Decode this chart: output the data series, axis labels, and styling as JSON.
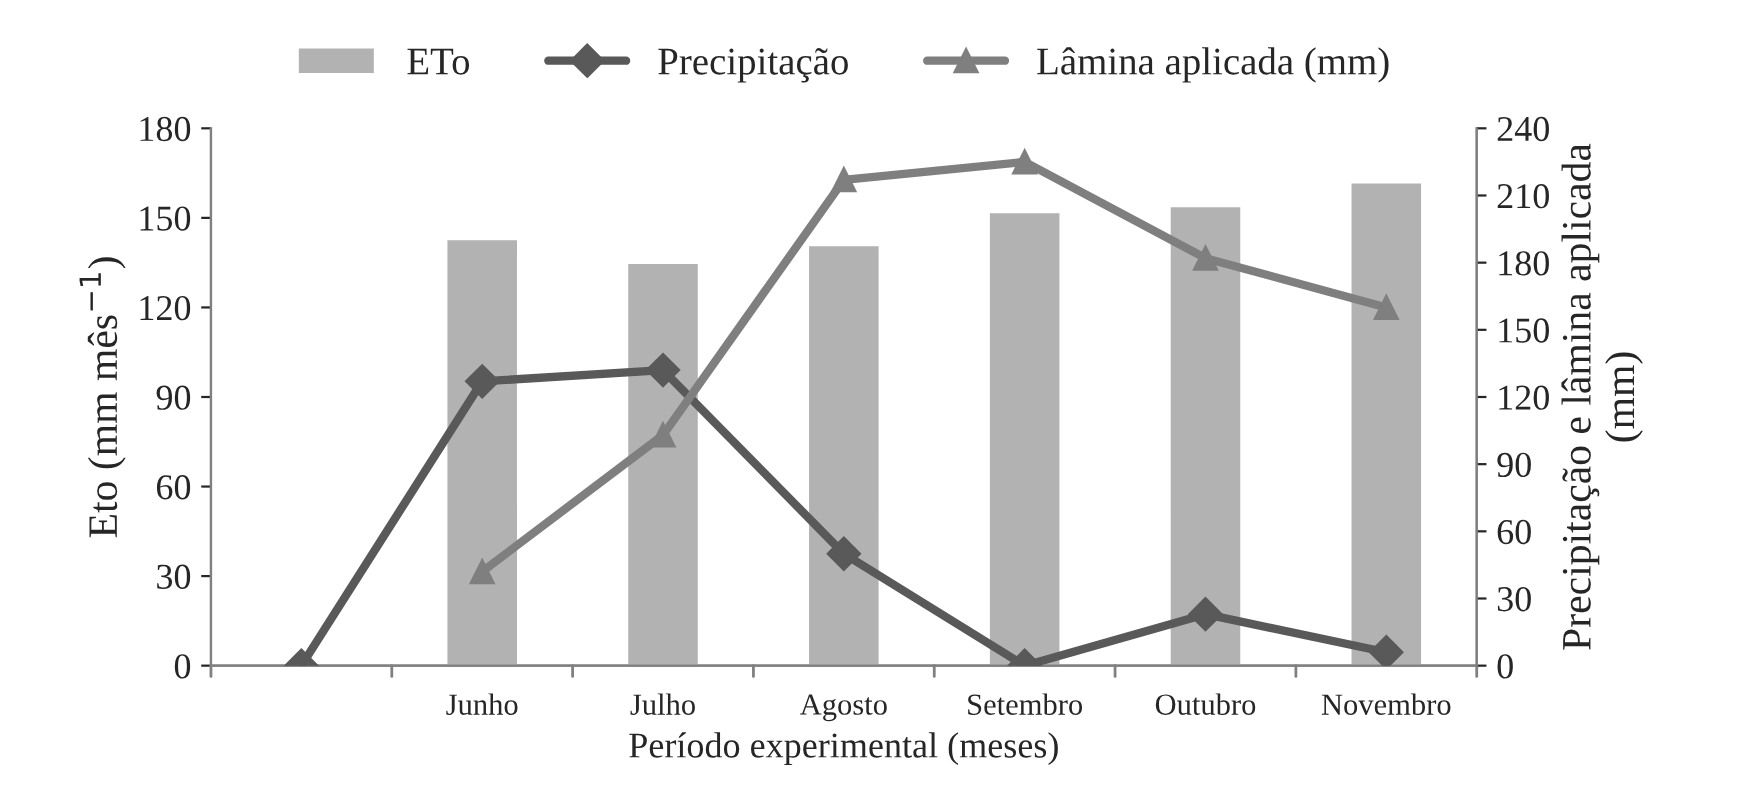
{
  "chart_data": {
    "type": "bar",
    "xlabel": "Período experimental (meses)",
    "ylabel": "Eto (mm mês$^{−1}$)",
    "y2label": "Precipitação e lâmina aplicada\n(mm)",
    "categories": [
      null,
      "Junho",
      "Julho",
      "Agosto",
      "Setembro",
      "Outubro",
      "Novembro"
    ],
    "series": [
      {
        "name": "ETo",
        "color": "#b2b2b2",
        "values": [
          null,
          143,
          135,
          141,
          152,
          154,
          162
        ]
      },
      {
        "name": "Precipitação",
        "type": "line",
        "axis": "y2",
        "marker": "diamond",
        "color": "#595959",
        "values": [
          0,
          127,
          132,
          50,
          0,
          23,
          6
        ]
      },
      {
        "name": "Lâmina aplicada (mm)",
        "type": "line",
        "axis": "y2",
        "marker": "triangle",
        "color": "#7f7f7f",
        "values": [
          null,
          42,
          103,
          217,
          225,
          182,
          160
        ]
      }
    ],
    "ylim": [
      0,
      180
    ],
    "yticks": [
      0,
      30,
      60,
      90,
      120,
      150,
      180
    ],
    "y2lim": [
      0,
      240
    ],
    "y2ticks": [
      0,
      30,
      60,
      90,
      120,
      150,
      180,
      210,
      240
    ],
    "legend": "top",
    "grid": false
  }
}
